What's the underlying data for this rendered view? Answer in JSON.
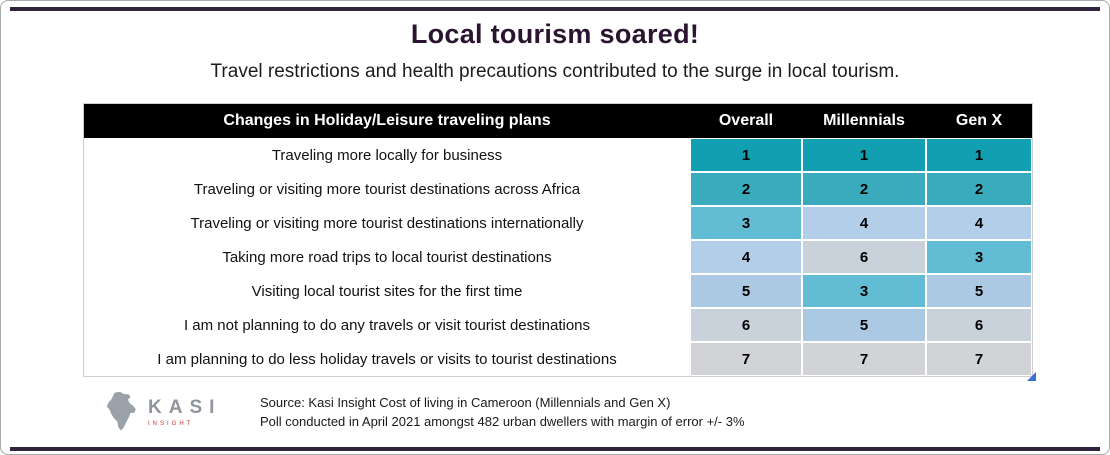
{
  "header": {
    "title": "Local tourism soared!",
    "subtitle": "Travel restrictions and health precautions contributed to the surge in local tourism."
  },
  "chart_data": {
    "type": "table",
    "title": "Local tourism soared!",
    "subtitle": "Travel restrictions and health precautions contributed to the surge in local tourism.",
    "row_header": "Changes in Holiday/Leisure traveling plans",
    "columns": [
      "Overall",
      "Millennials",
      "Gen X"
    ],
    "rows": [
      {
        "label": "Traveling more locally for business",
        "values": [
          1,
          1,
          1
        ]
      },
      {
        "label": "Traveling or visiting more tourist destinations across Africa",
        "values": [
          2,
          2,
          2
        ]
      },
      {
        "label": "Traveling or visiting more tourist destinations internationally",
        "values": [
          3,
          4,
          4
        ]
      },
      {
        "label": "Taking more road trips to local tourist destinations",
        "values": [
          4,
          6,
          3
        ]
      },
      {
        "label": "Visiting local tourist sites for the first time",
        "values": [
          5,
          3,
          5
        ]
      },
      {
        "label": "I am not planning to do any travels or visit tourist destinations",
        "values": [
          6,
          5,
          6
        ]
      },
      {
        "label": "I am planning to do less holiday travels or visits to tourist destinations",
        "values": [
          7,
          7,
          7
        ]
      }
    ],
    "rank_palette": {
      "1": "#119fb1",
      "2": "#3aabbd",
      "3": "#62bcd4",
      "4": "#b3cee8",
      "5": "#abc9e3",
      "6": "#c9d2db",
      "7": "#d2d3d6"
    },
    "header_bg": "#000000",
    "header_text_color": "#ffffff"
  },
  "footer": {
    "logo_word": "KASI",
    "logo_sub": "INSIGHT",
    "source_line1": "Source: Kasi Insight Cost of living in Cameroon (Millennials and Gen X)",
    "source_line2": "Poll conducted in April 2021 amongst 482 urban dwellers with margin of error +/- 3%"
  },
  "colors": {
    "rule": "#32223c",
    "title": "#2b1430",
    "corner_triangle": "#3b6fd4"
  }
}
